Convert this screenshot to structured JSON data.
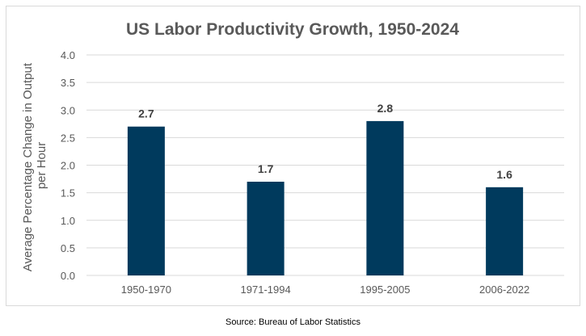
{
  "chart_data": {
    "type": "bar",
    "title": "US Labor Productivity Growth, 1950-2024",
    "xlabel": "",
    "ylabel": "Average Percentage Change in Output per Hour",
    "ylabel_lines": [
      "Average Percentage Change in Output",
      "per Hour"
    ],
    "categories": [
      "1950-1970",
      "1971-1994",
      "1995-2005",
      "2006-2022"
    ],
    "values": [
      2.7,
      1.7,
      2.8,
      1.6
    ],
    "data_labels": [
      "2.7",
      "1.7",
      "2.8",
      "1.6"
    ],
    "ylim": [
      0,
      4.0
    ],
    "yticks": [
      "0.0",
      "0.5",
      "1.0",
      "1.5",
      "2.0",
      "2.5",
      "3.0",
      "3.5",
      "4.0"
    ],
    "grid": true,
    "legend": "none",
    "bar_color": "#003a5d",
    "title_color": "#595959",
    "grid_color": "#d9d9d9"
  },
  "source": "Source: Bureau of Labor Statistics"
}
